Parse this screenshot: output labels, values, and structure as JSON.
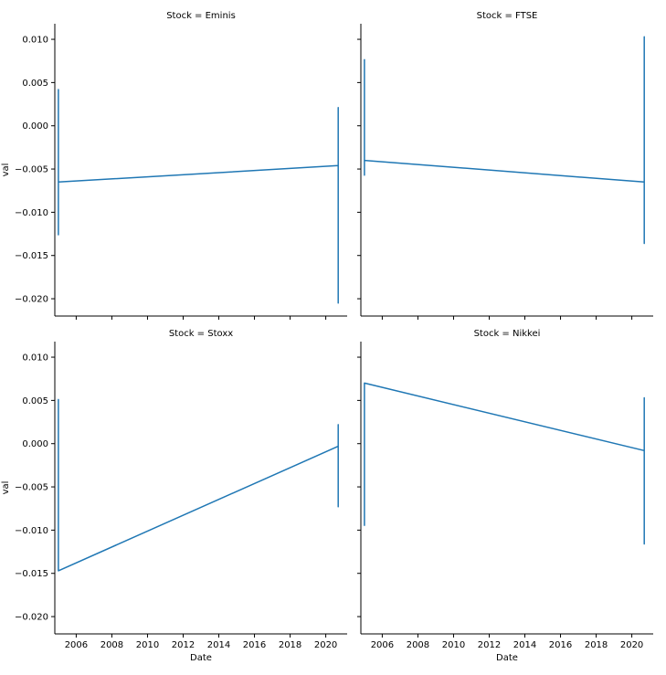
{
  "colors": {
    "line": "#1f77b4",
    "axis": "#000000",
    "background": "#ffffff"
  },
  "shared": {
    "xlabel": "Date",
    "ylabel": "val",
    "x_ticks": [
      2006,
      2008,
      2010,
      2012,
      2014,
      2016,
      2018,
      2020
    ],
    "y_ticks": [
      0.01,
      0.005,
      0.0,
      -0.005,
      -0.01,
      -0.015,
      -0.02
    ],
    "y_tick_labels": [
      "0.010",
      "0.005",
      "0.000",
      "−0.005",
      "−0.010",
      "−0.015",
      "−0.020"
    ],
    "x_tick_labels": [
      "2006",
      "2008",
      "2010",
      "2012",
      "2014",
      "2016",
      "2018",
      "2020"
    ]
  },
  "chart_data": [
    {
      "type": "line",
      "title": "Stock = Eminis",
      "xlabel": "",
      "ylabel": "val",
      "xlim": [
        2004.8,
        2021.2
      ],
      "ylim": [
        -0.022,
        0.0118
      ],
      "series": [
        {
          "name": "Eminis",
          "x": [
            2005.0,
            2005.0,
            2005.0,
            2005.0,
            2005.0,
            2005.0,
            2020.7,
            2020.7,
            2020.7,
            2020.7,
            2020.7,
            2020.7
          ],
          "y": [
            0.0042,
            -0.0126,
            0.0042,
            -0.0045,
            0.0,
            -0.0065,
            -0.0046,
            0.0021,
            -0.0205,
            -0.0025,
            -0.0082,
            -0.0046
          ]
        }
      ]
    },
    {
      "type": "line",
      "title": "Stock = FTSE",
      "xlabel": "",
      "ylabel": "",
      "xlim": [
        2004.8,
        2021.2
      ],
      "ylim": [
        -0.022,
        0.0118
      ],
      "series": [
        {
          "name": "FTSE",
          "x": [
            2005.0,
            2005.0,
            2005.0,
            2005.0,
            2005.0,
            2020.7,
            2020.7,
            2020.7,
            2020.7,
            2020.7
          ],
          "y": [
            0.0077,
            -0.0057,
            0.0062,
            -0.0035,
            -0.004,
            -0.0065,
            0.0103,
            -0.0136,
            0.0095,
            -0.0065
          ]
        }
      ]
    },
    {
      "type": "line",
      "title": "Stock = Stoxx",
      "xlabel": "Date",
      "ylabel": "val",
      "xlim": [
        2004.8,
        2021.2
      ],
      "ylim": [
        -0.022,
        0.0118
      ],
      "series": [
        {
          "name": "Stoxx",
          "x": [
            2005.0,
            2005.0,
            2005.0,
            2005.0,
            2005.0,
            2020.7,
            2020.7,
            2020.7,
            2020.7,
            2020.7
          ],
          "y": [
            0.0051,
            -0.003,
            0.0051,
            -0.0145,
            -0.0147,
            -0.0003,
            0.0022,
            -0.0073,
            -0.0038,
            -0.0003
          ]
        }
      ]
    },
    {
      "type": "line",
      "title": "Stock = Nikkei",
      "xlabel": "Date",
      "ylabel": "",
      "xlim": [
        2004.8,
        2021.2
      ],
      "ylim": [
        -0.022,
        0.0118
      ],
      "series": [
        {
          "name": "Nikkei",
          "x": [
            2005.0,
            2005.0,
            2005.0,
            2005.0,
            2005.0,
            2020.7,
            2020.7,
            2020.7,
            2020.7,
            2020.7
          ],
          "y": [
            -0.0095,
            0.0052,
            -0.0092,
            0.0052,
            0.007,
            -0.0008,
            0.0053,
            -0.0116,
            -0.0085,
            -0.0008
          ]
        }
      ]
    }
  ]
}
